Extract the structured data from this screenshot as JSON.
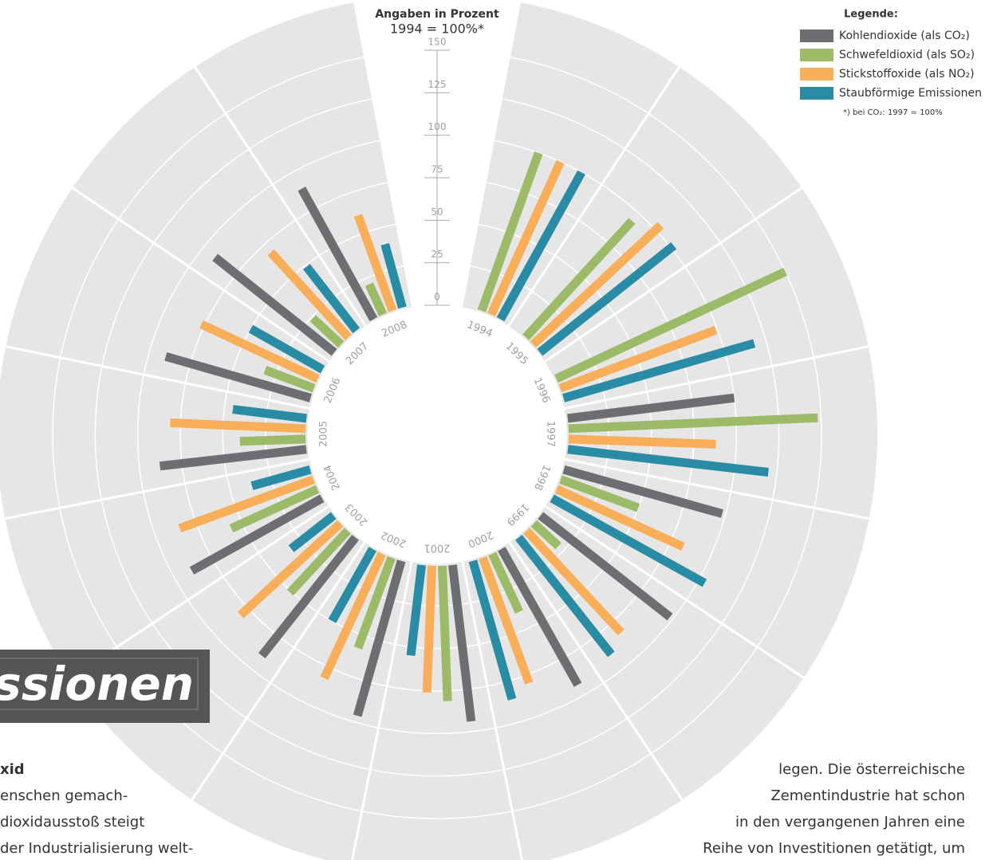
{
  "chart_data": {
    "type": "radial_bar",
    "axis_title": "Angaben in Prozent",
    "axis_subtitle": "1994 = 100%*",
    "legend_title": "Legende:",
    "footnote": "*) bei CO₂: 1997 = 100%",
    "categories": [
      "1994",
      "1995",
      "1996",
      "1997",
      "1998",
      "1999",
      "2000",
      "2001",
      "2002",
      "2003",
      "2004",
      "2005",
      "2006",
      "2007",
      "2008"
    ],
    "series": [
      {
        "name": "Kohlendioxide (als CO₂)",
        "color": "#6d6e71",
        "values": [
          null,
          null,
          null,
          100,
          98,
          98,
          93,
          94,
          96,
          90,
          89,
          88,
          90,
          91,
          89
        ]
      },
      {
        "name": "Schwefeldioxid (als SO₂)",
        "color": "#9cbb68",
        "values": [
          100,
          94,
          150,
          148,
          50,
          21,
          39,
          81,
          58,
          51,
          57,
          40,
          32,
          24,
          21
        ]
      },
      {
        "name": "Stickstoffoxide (als NO₂)",
        "color": "#f9ae5a",
        "values": [
          100,
          104,
          99,
          88,
          83,
          83,
          80,
          76,
          82,
          81,
          85,
          81,
          77,
          69,
          61
        ]
      },
      {
        "name": "Staubförmige Emissionen",
        "color": "#2a8ca4",
        "values": [
          100,
          102,
          118,
          120,
          104,
          89,
          86,
          55,
          50,
          33,
          37,
          45,
          50,
          49,
          40
        ]
      }
    ],
    "ylim": [
      0,
      150
    ],
    "yticks": [
      0,
      25,
      50,
      75,
      100,
      125,
      150
    ],
    "grid": true,
    "legend": "top-right"
  },
  "document": {
    "banner": "ssionen",
    "left_text": [
      "xid",
      "enschen gemach-",
      "dioxidausstoß   steigt",
      "der Industrialisierung welt-"
    ],
    "right_text": [
      "legen. Die österreichische",
      "Zementindustrie hat schon",
      "in den vergangenen Jahren eine",
      "Reihe von Investitionen getätigt, um"
    ]
  }
}
